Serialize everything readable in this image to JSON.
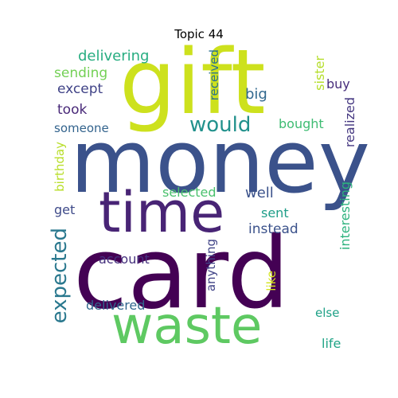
{
  "title": "Topic 44",
  "words": [
    {
      "text": "gift",
      "color": "#cde11d"
    },
    {
      "text": "money",
      "color": "#3b528b"
    },
    {
      "text": "time",
      "color": "#482475"
    },
    {
      "text": "card",
      "color": "#440154"
    },
    {
      "text": "waste",
      "color": "#5ec962"
    },
    {
      "text": "would",
      "color": "#21918c"
    },
    {
      "text": "expected",
      "color": "#2a788e"
    },
    {
      "text": "delivering",
      "color": "#27ad81"
    },
    {
      "text": "sending",
      "color": "#73d055"
    },
    {
      "text": "except",
      "color": "#404387"
    },
    {
      "text": "took",
      "color": "#482878"
    },
    {
      "text": "someone",
      "color": "#33638d"
    },
    {
      "text": "big",
      "color": "#31688e"
    },
    {
      "text": "bought",
      "color": "#3fbc73"
    },
    {
      "text": "received",
      "color": "#2c728e"
    },
    {
      "text": "sister",
      "color": "#b5de2b"
    },
    {
      "text": "buy",
      "color": "#472d7b"
    },
    {
      "text": "realized",
      "color": "#453781"
    },
    {
      "text": "birthday",
      "color": "#b8de29"
    },
    {
      "text": "selected",
      "color": "#4ac16d"
    },
    {
      "text": "well",
      "color": "#3b528b"
    },
    {
      "text": "get",
      "color": "#3e4a89"
    },
    {
      "text": "sent",
      "color": "#1f9e89"
    },
    {
      "text": "instead",
      "color": "#3b528b"
    },
    {
      "text": "interesting",
      "color": "#2db27d"
    },
    {
      "text": "account",
      "color": "#46327e"
    },
    {
      "text": "anything",
      "color": "#414487"
    },
    {
      "text": "like",
      "color": "#d2e21b"
    },
    {
      "text": "delivered",
      "color": "#31688e"
    },
    {
      "text": "else",
      "color": "#1fa187"
    },
    {
      "text": "life",
      "color": "#20a486"
    }
  ]
}
